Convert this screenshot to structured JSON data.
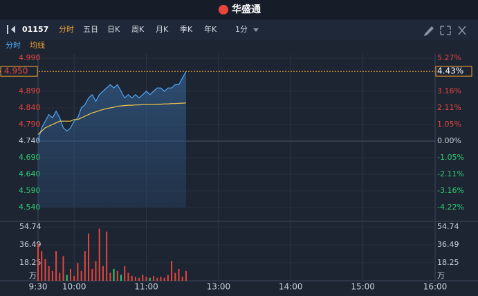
{
  "ui": {
    "brand": "华盛通",
    "code": "01157",
    "tabs": [
      "分时",
      "五日",
      "日K",
      "周K",
      "月K",
      "季K",
      "年K"
    ],
    "active_tab": 0,
    "interval": "1分"
  },
  "chart_data": [
    {
      "type": "line",
      "x": [
        0,
        3,
        6,
        9,
        12,
        15,
        18,
        21,
        24,
        27,
        30,
        33,
        36,
        39,
        42,
        45,
        48,
        51,
        54,
        57,
        60,
        63,
        66,
        69,
        72,
        75,
        78,
        81,
        84,
        87,
        90,
        93,
        96,
        99,
        102,
        105,
        108,
        111,
        114,
        117,
        120,
        123
      ],
      "series": [
        {
          "name": "分时",
          "color": "#4fa8f5",
          "values": [
            4.74,
            4.78,
            4.8,
            4.82,
            4.81,
            4.83,
            4.81,
            4.78,
            4.77,
            4.78,
            4.8,
            4.81,
            4.84,
            4.85,
            4.87,
            4.88,
            4.86,
            4.88,
            4.89,
            4.9,
            4.91,
            4.9,
            4.91,
            4.89,
            4.87,
            4.88,
            4.87,
            4.88,
            4.87,
            4.88,
            4.89,
            4.88,
            4.89,
            4.9,
            4.9,
            4.89,
            4.9,
            4.9,
            4.91,
            4.91,
            4.93,
            4.95
          ]
        },
        {
          "name": "均线",
          "color": "#f2c94c",
          "values": [
            4.76,
            4.77,
            4.78,
            4.785,
            4.79,
            4.795,
            4.8,
            4.8,
            4.8,
            4.8,
            4.805,
            4.805,
            4.81,
            4.815,
            4.82,
            4.825,
            4.828,
            4.832,
            4.835,
            4.838,
            4.84,
            4.842,
            4.845,
            4.846,
            4.847,
            4.848,
            4.848,
            4.849,
            4.849,
            4.85,
            4.85,
            4.85,
            4.85,
            4.851,
            4.851,
            4.852,
            4.852,
            4.853,
            4.853,
            4.854,
            4.854,
            4.855
          ]
        }
      ],
      "xlim": [
        0,
        330
      ],
      "xticks": [
        {
          "value": 0,
          "label": "9:30"
        },
        {
          "value": 30,
          "label": "10:00"
        },
        {
          "value": 90,
          "label": "11:00"
        },
        {
          "value": 150,
          "label": "13:00"
        },
        {
          "value": 210,
          "label": "14:00"
        },
        {
          "value": 270,
          "label": "15:00"
        },
        {
          "value": 330,
          "label": "16:00"
        }
      ],
      "ylim": [
        4.54,
        4.99
      ],
      "yticks": [
        {
          "value": 4.99,
          "label": "4.990"
        },
        {
          "value": 4.89,
          "label": "4.890"
        },
        {
          "value": 4.84,
          "label": "4.840"
        },
        {
          "value": 4.79,
          "label": "4.790"
        },
        {
          "value": 4.74,
          "label": "4.740"
        },
        {
          "value": 4.69,
          "label": "4.690"
        },
        {
          "value": 4.64,
          "label": "4.640"
        },
        {
          "value": 4.59,
          "label": "4.590"
        },
        {
          "value": 4.54,
          "label": "4.540"
        }
      ],
      "y2lim": [
        -4.22,
        5.27
      ],
      "y2ticks": [
        {
          "value": 5.27,
          "label": "5.27%"
        },
        {
          "value": 3.16,
          "label": "3.16%"
        },
        {
          "value": 2.11,
          "label": "2.11%"
        },
        {
          "value": 1.05,
          "label": "1.05%"
        },
        {
          "value": 0,
          "label": "0.00%"
        },
        {
          "value": -1.05,
          "label": "-1.05%"
        },
        {
          "value": -2.11,
          "label": "-2.11%"
        },
        {
          "value": -3.16,
          "label": "-3.16%"
        },
        {
          "value": -4.22,
          "label": "-4.22%"
        }
      ],
      "last_price": {
        "value": 4.95,
        "label": "4.950"
      },
      "last_change": {
        "value": 4.43,
        "label": "4.43%"
      }
    },
    {
      "type": "bar",
      "x": [
        0,
        3,
        6,
        9,
        12,
        15,
        18,
        21,
        24,
        27,
        30,
        33,
        36,
        39,
        42,
        45,
        48,
        51,
        54,
        57,
        60,
        63,
        66,
        69,
        72,
        75,
        78,
        81,
        84,
        87,
        90,
        93,
        96,
        99,
        102,
        105,
        108,
        111,
        114,
        117,
        120,
        123
      ],
      "values": [
        38,
        30,
        22,
        15,
        10,
        30,
        8,
        25,
        6,
        12,
        5,
        18,
        10,
        30,
        48,
        12,
        20,
        53,
        15,
        50,
        8,
        12,
        10,
        6,
        15,
        8,
        5,
        4,
        3,
        6,
        4,
        3,
        5,
        3,
        4,
        3,
        6,
        20,
        8,
        12,
        4,
        10
      ],
      "colors": [
        "#e8453c",
        "#e8453c",
        "#e8453c",
        "#e8453c",
        "#e8453c",
        "#e8453c",
        "#e8453c",
        "#e8453c",
        "#2ecc71",
        "#e8453c",
        "#e8453c",
        "#e8453c",
        "#e8453c",
        "#e8453c",
        "#e8453c",
        "#e8453c",
        "#e8453c",
        "#e8453c",
        "#e8453c",
        "#e8453c",
        "#e8453c",
        "#2ecc71",
        "#e8453c",
        "#2ecc71",
        "#e8453c",
        "#e8453c",
        "#e8453c",
        "#e8453c",
        "#e8453c",
        "#e8453c",
        "#e8453c",
        "#2ecc71",
        "#e8453c",
        "#e8453c",
        "#e8453c",
        "#e8453c",
        "#e8453c",
        "#e8453c",
        "#e8453c",
        "#e8453c",
        "#e8453c",
        "#e8453c"
      ],
      "xlim": [
        0,
        330
      ],
      "ylim": [
        0,
        54.74
      ],
      "yticks": [
        54.74,
        36.49,
        18.25
      ],
      "unit": "万"
    }
  ]
}
